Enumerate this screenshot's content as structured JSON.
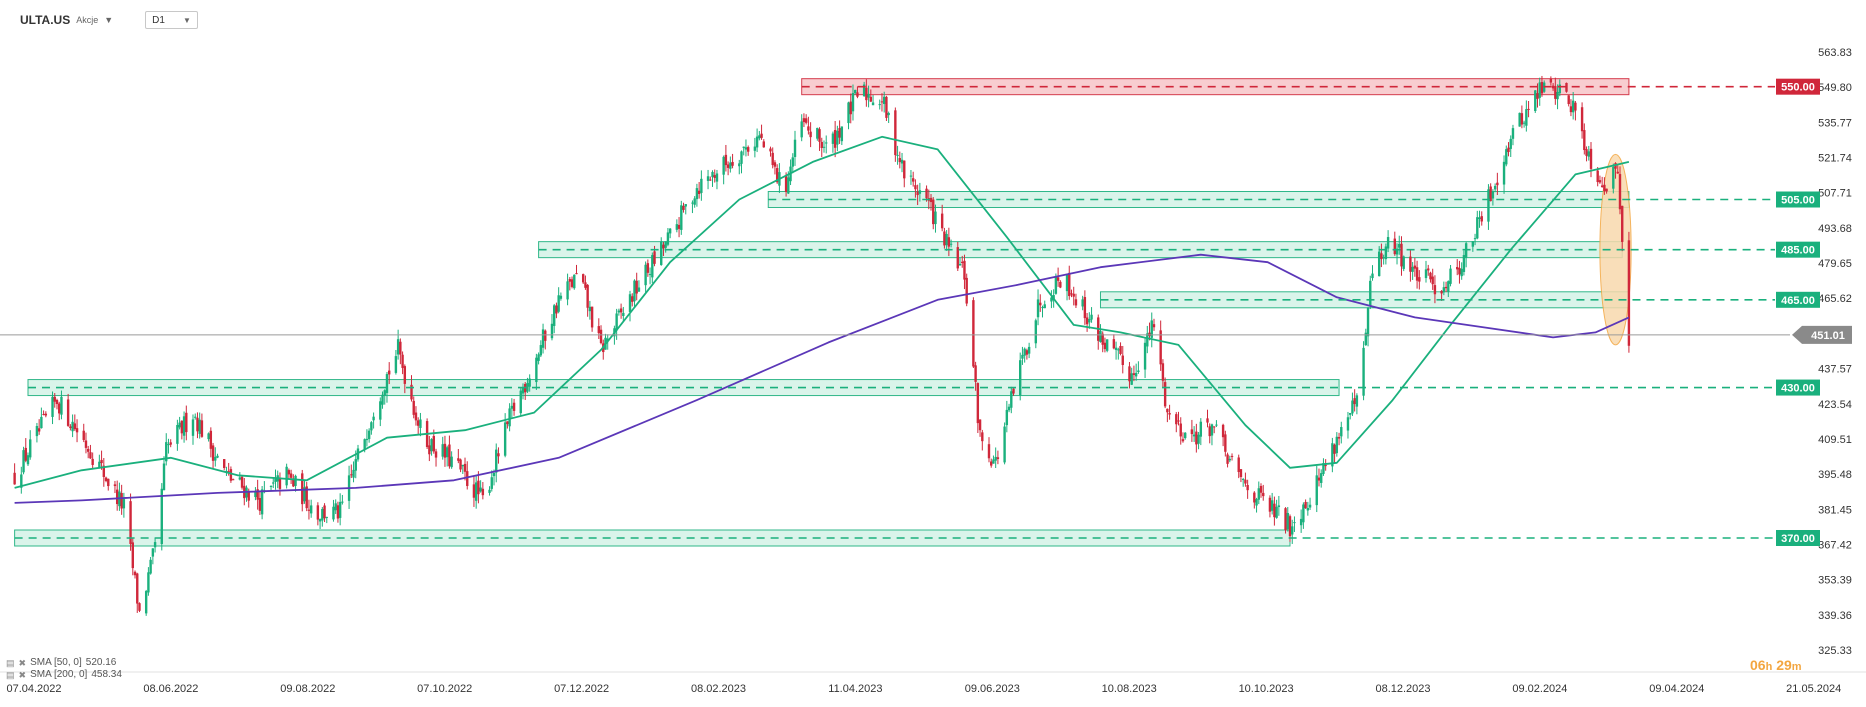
{
  "header": {
    "symbol": "ULTA.US",
    "instrument_type": "Akcje",
    "timeframe": "D1"
  },
  "legend": [
    {
      "label": "SMA [50, 0]",
      "value": "520.16",
      "color": "#1ab07d"
    },
    {
      "label": "SMA [200, 0]",
      "value": "458.34",
      "color": "#5b37b8"
    }
  ],
  "timer": {
    "hours": "06",
    "h": "h",
    "minutes": "29",
    "m": "m"
  },
  "colors": {
    "up": "#1ab07d",
    "down": "#d0273a",
    "support_fill": "#d6f3e8",
    "support_line": "#1ab07d",
    "resistance_fill": "#f8c8cc",
    "resistance_line": "#d0273a",
    "sma50": "#1ab07d",
    "sma200": "#5b37b8",
    "highlight": "#f9d9ad"
  },
  "chart_data": {
    "type": "candlestick",
    "ylim": [
      325.33,
      570
    ],
    "y_ticks": [
      "563.83",
      "549.80",
      "535.77",
      "521.74",
      "507.71",
      "493.68",
      "479.65",
      "465.62",
      "437.57",
      "423.54",
      "409.51",
      "395.48",
      "381.45",
      "367.42",
      "353.39",
      "339.36",
      "325.33"
    ],
    "x_ticks": [
      "07.04.2022",
      "08.06.2022",
      "09.08.2022",
      "07.10.2022",
      "07.12.2022",
      "08.02.2023",
      "11.04.2023",
      "09.06.2023",
      "10.08.2023",
      "10.10.2023",
      "08.12.2023",
      "09.02.2024",
      "09.04.2024",
      "21.05.2024"
    ],
    "current_price": "451.01",
    "levels": [
      {
        "price": 550.0,
        "label": "550.00",
        "kind": "resistance",
        "from": "2023-03-20",
        "to": "2024-03-25"
      },
      {
        "price": 505.0,
        "label": "505.00",
        "kind": "support",
        "from": "2023-03-05",
        "to": "2024-03-25"
      },
      {
        "price": 485.0,
        "label": "485.00",
        "kind": "support",
        "from": "2022-11-22",
        "to": "2024-03-22"
      },
      {
        "price": 465.0,
        "label": "465.00",
        "kind": "support",
        "from": "2023-08-01",
        "to": "2024-03-25"
      },
      {
        "price": 430.0,
        "label": "430.00",
        "kind": "support",
        "from": "2022-04-07",
        "to": "2023-11-16"
      },
      {
        "price": 370.0,
        "label": "370.00",
        "kind": "support",
        "from": "2022-04-01",
        "to": "2023-10-25"
      }
    ],
    "highlight_zone": {
      "from": "2024-03-12",
      "to": "2024-03-26",
      "low": 447,
      "high": 523
    },
    "price_path": [
      {
        "date": "2022-04-01",
        "close": 395
      },
      {
        "date": "2022-04-20",
        "close": 425
      },
      {
        "date": "2022-05-05",
        "close": 405
      },
      {
        "date": "2022-05-20",
        "close": 382
      },
      {
        "date": "2022-05-27",
        "close": 340
      },
      {
        "date": "2022-06-03",
        "close": 365
      },
      {
        "date": "2022-06-08",
        "close": 405
      },
      {
        "date": "2022-06-20",
        "close": 420
      },
      {
        "date": "2022-07-05",
        "close": 395
      },
      {
        "date": "2022-07-20",
        "close": 385
      },
      {
        "date": "2022-08-01",
        "close": 395
      },
      {
        "date": "2022-08-15",
        "close": 380
      },
      {
        "date": "2022-08-25",
        "close": 380
      },
      {
        "date": "2022-09-10",
        "close": 425
      },
      {
        "date": "2022-09-20",
        "close": 445
      },
      {
        "date": "2022-10-01",
        "close": 410
      },
      {
        "date": "2022-10-15",
        "close": 400
      },
      {
        "date": "2022-10-28",
        "close": 385
      },
      {
        "date": "2022-11-10",
        "close": 420
      },
      {
        "date": "2022-11-20",
        "close": 440
      },
      {
        "date": "2022-12-01",
        "close": 465
      },
      {
        "date": "2022-12-10",
        "close": 475
      },
      {
        "date": "2022-12-20",
        "close": 445
      },
      {
        "date": "2023-01-05",
        "close": 470
      },
      {
        "date": "2023-01-20",
        "close": 490
      },
      {
        "date": "2023-02-01",
        "close": 510
      },
      {
        "date": "2023-02-15",
        "close": 520
      },
      {
        "date": "2023-03-01",
        "close": 530
      },
      {
        "date": "2023-03-12",
        "close": 508
      },
      {
        "date": "2023-03-20",
        "close": 535
      },
      {
        "date": "2023-04-01",
        "close": 525
      },
      {
        "date": "2023-04-15",
        "close": 548
      },
      {
        "date": "2023-04-25",
        "close": 545
      },
      {
        "date": "2023-05-05",
        "close": 515
      },
      {
        "date": "2023-05-15",
        "close": 505
      },
      {
        "date": "2023-05-25",
        "close": 485
      },
      {
        "date": "2023-06-01",
        "close": 475
      },
      {
        "date": "2023-06-08",
        "close": 410
      },
      {
        "date": "2023-06-15",
        "close": 400
      },
      {
        "date": "2023-06-25",
        "close": 435
      },
      {
        "date": "2023-07-05",
        "close": 465
      },
      {
        "date": "2023-07-15",
        "close": 475
      },
      {
        "date": "2023-07-25",
        "close": 460
      },
      {
        "date": "2023-08-05",
        "close": 445
      },
      {
        "date": "2023-08-15",
        "close": 435
      },
      {
        "date": "2023-08-25",
        "close": 455
      },
      {
        "date": "2023-08-31",
        "close": 420
      },
      {
        "date": "2023-09-10",
        "close": 410
      },
      {
        "date": "2023-09-20",
        "close": 415
      },
      {
        "date": "2023-10-01",
        "close": 395
      },
      {
        "date": "2023-10-12",
        "close": 385
      },
      {
        "date": "2023-10-25",
        "close": 375
      },
      {
        "date": "2023-11-05",
        "close": 390
      },
      {
        "date": "2023-11-15",
        "close": 410
      },
      {
        "date": "2023-11-25",
        "close": 425
      },
      {
        "date": "2023-12-01",
        "close": 478
      },
      {
        "date": "2023-12-10",
        "close": 488
      },
      {
        "date": "2023-12-20",
        "close": 475
      },
      {
        "date": "2024-01-01",
        "close": 470
      },
      {
        "date": "2024-01-10",
        "close": 480
      },
      {
        "date": "2024-01-20",
        "close": 500
      },
      {
        "date": "2024-02-01",
        "close": 530
      },
      {
        "date": "2024-02-15",
        "close": 550
      },
      {
        "date": "2024-02-25",
        "close": 548
      },
      {
        "date": "2024-03-01",
        "close": 540
      },
      {
        "date": "2024-03-08",
        "close": 520
      },
      {
        "date": "2024-03-15",
        "close": 510
      },
      {
        "date": "2024-03-20",
        "close": 518
      },
      {
        "date": "2024-03-25",
        "close": 451
      }
    ],
    "sma50": [
      {
        "date": "2022-04-01",
        "value": 390
      },
      {
        "date": "2022-05-01",
        "value": 397
      },
      {
        "date": "2022-06-10",
        "value": 402
      },
      {
        "date": "2022-07-10",
        "value": 395
      },
      {
        "date": "2022-08-10",
        "value": 393
      },
      {
        "date": "2022-09-15",
        "value": 410
      },
      {
        "date": "2022-10-20",
        "value": 413
      },
      {
        "date": "2022-11-20",
        "value": 420
      },
      {
        "date": "2022-12-20",
        "value": 445
      },
      {
        "date": "2023-01-20",
        "value": 480
      },
      {
        "date": "2023-02-20",
        "value": 505
      },
      {
        "date": "2023-03-25",
        "value": 520
      },
      {
        "date": "2023-04-25",
        "value": 530
      },
      {
        "date": "2023-05-20",
        "value": 525
      },
      {
        "date": "2023-06-20",
        "value": 490
      },
      {
        "date": "2023-07-20",
        "value": 455
      },
      {
        "date": "2023-08-10",
        "value": 452
      },
      {
        "date": "2023-09-05",
        "value": 447
      },
      {
        "date": "2023-10-05",
        "value": 415
      },
      {
        "date": "2023-10-25",
        "value": 398
      },
      {
        "date": "2023-11-15",
        "value": 400
      },
      {
        "date": "2023-12-10",
        "value": 425
      },
      {
        "date": "2024-01-05",
        "value": 455
      },
      {
        "date": "2024-02-01",
        "value": 485
      },
      {
        "date": "2024-03-01",
        "value": 515
      },
      {
        "date": "2024-03-25",
        "value": 520
      }
    ],
    "sma200": [
      {
        "date": "2022-04-01",
        "value": 384
      },
      {
        "date": "2022-05-01",
        "value": 385
      },
      {
        "date": "2022-07-01",
        "value": 388
      },
      {
        "date": "2022-09-01",
        "value": 390
      },
      {
        "date": "2022-10-15",
        "value": 393
      },
      {
        "date": "2022-12-01",
        "value": 402
      },
      {
        "date": "2023-02-01",
        "value": 425
      },
      {
        "date": "2023-04-01",
        "value": 448
      },
      {
        "date": "2023-05-20",
        "value": 465
      },
      {
        "date": "2023-06-25",
        "value": 471
      },
      {
        "date": "2023-08-01",
        "value": 478
      },
      {
        "date": "2023-09-15",
        "value": 483
      },
      {
        "date": "2023-10-15",
        "value": 480
      },
      {
        "date": "2023-11-15",
        "value": 466
      },
      {
        "date": "2023-12-20",
        "value": 458
      },
      {
        "date": "2024-01-20",
        "value": 454
      },
      {
        "date": "2024-02-20",
        "value": 450
      },
      {
        "date": "2024-03-10",
        "value": 452
      },
      {
        "date": "2024-03-25",
        "value": 458
      }
    ]
  }
}
